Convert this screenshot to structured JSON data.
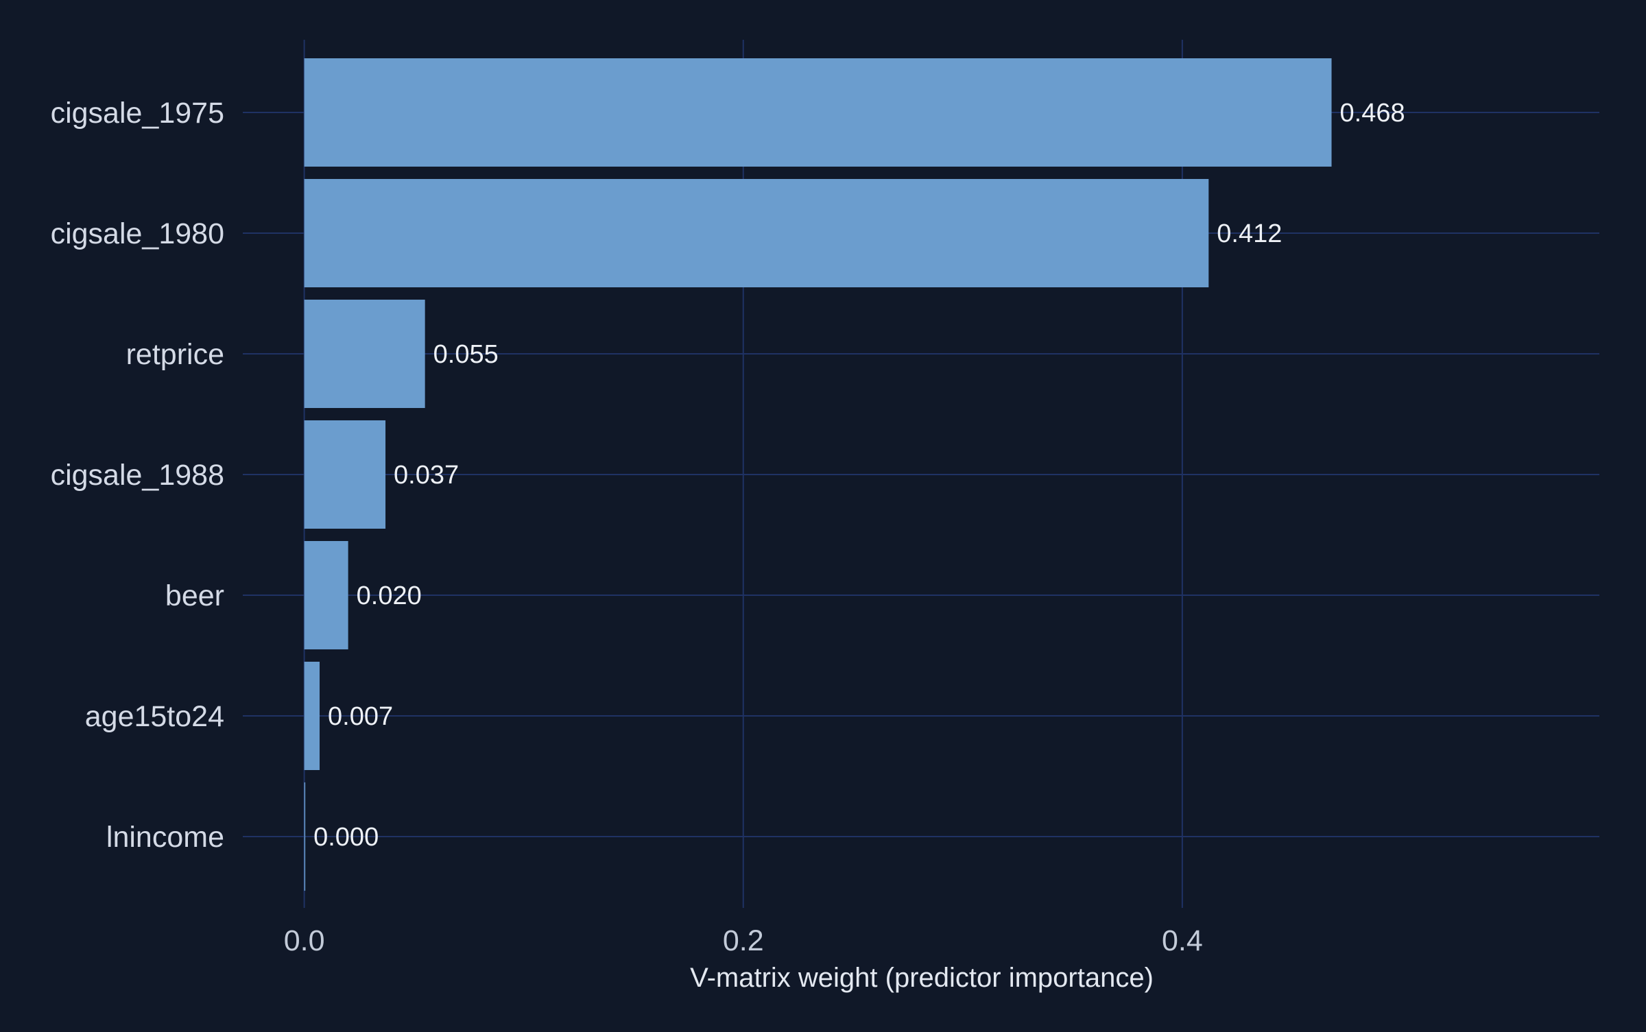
{
  "chart_data": {
    "type": "bar",
    "orientation": "horizontal",
    "categories": [
      "cigsale_1975",
      "cigsale_1980",
      "retprice",
      "cigsale_1988",
      "beer",
      "age15to24",
      "lnincome"
    ],
    "values": [
      0.468,
      0.412,
      0.055,
      0.037,
      0.02,
      0.007,
      0.0
    ],
    "value_labels": [
      "0.468",
      "0.412",
      "0.055",
      "0.037",
      "0.020",
      "0.007",
      "0.000"
    ],
    "xlabel": "V-matrix weight (predictor importance)",
    "ylabel": "",
    "title": "",
    "xlim": [
      -0.028,
      0.59
    ],
    "xticks": [
      0.0,
      0.2,
      0.4
    ],
    "xtick_labels": [
      "0.0",
      "0.2",
      "0.4"
    ],
    "grid": true,
    "legend": "none"
  },
  "colors": {
    "background": "#101828",
    "bar": "#6b9dce",
    "grid": "#1f3264"
  }
}
